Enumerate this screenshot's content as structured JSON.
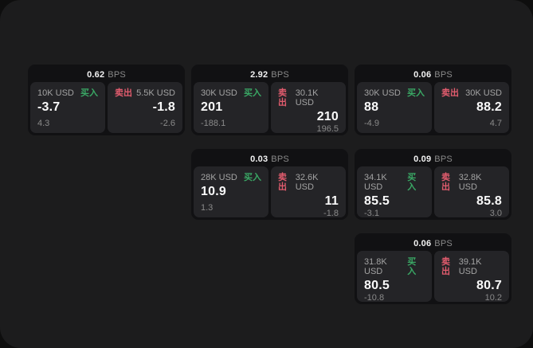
{
  "colors": {
    "buy": "#3aa865",
    "sell": "#e25c6e",
    "window_bg": "#1c1c1d",
    "card_bg": "#111113",
    "pane_bg": "#242427"
  },
  "labels": {
    "buy": "买入",
    "sell": "卖出",
    "bps_unit": "BPS"
  },
  "cards": [
    {
      "bps": "0.62",
      "buy": {
        "size": "10K USD",
        "value": "-3.7",
        "sub": "4.3"
      },
      "sell": {
        "size": "5.5K USD",
        "value": "-1.8",
        "sub": "-2.6"
      }
    },
    {
      "bps": "2.92",
      "buy": {
        "size": "30K USD",
        "value": "201",
        "sub": "-188.1"
      },
      "sell": {
        "size": "30.1K USD",
        "value": "210",
        "sub": "196.5"
      }
    },
    {
      "bps": "0.06",
      "buy": {
        "size": "30K USD",
        "value": "88",
        "sub": "-4.9"
      },
      "sell": {
        "size": "30K USD",
        "value": "88.2",
        "sub": "4.7"
      }
    },
    {
      "bps": "0.03",
      "buy": {
        "size": "28K USD",
        "value": "10.9",
        "sub": "1.3"
      },
      "sell": {
        "size": "32.6K USD",
        "value": "11",
        "sub": "-1.8"
      }
    },
    {
      "bps": "0.09",
      "buy": {
        "size": "34.1K USD",
        "value": "85.5",
        "sub": "-3.1"
      },
      "sell": {
        "size": "32.8K USD",
        "value": "85.8",
        "sub": "3.0"
      }
    },
    {
      "bps": "0.06",
      "buy": {
        "size": "31.8K USD",
        "value": "80.5",
        "sub": "-10.8"
      },
      "sell": {
        "size": "39.1K USD",
        "value": "80.7",
        "sub": "10.2"
      }
    }
  ]
}
